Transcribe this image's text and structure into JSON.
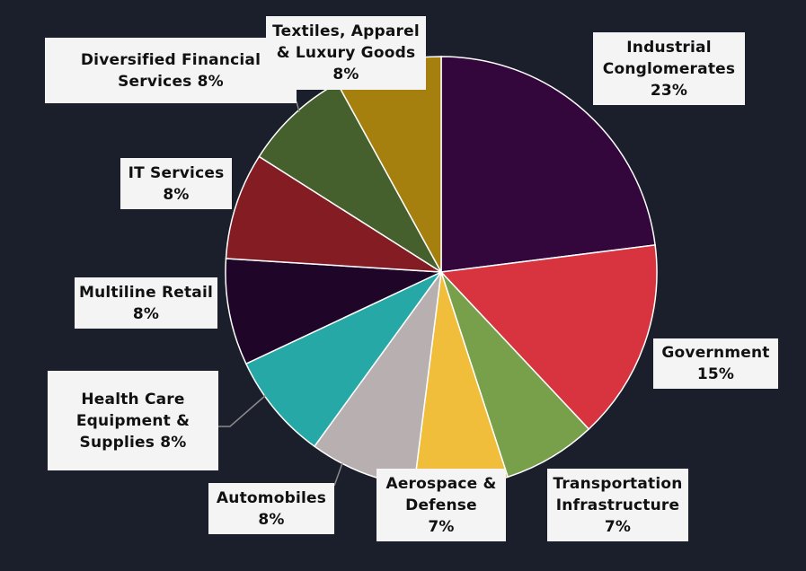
{
  "chart_data": {
    "type": "pie",
    "start_angle": "top, clockwise",
    "slices": [
      {
        "name": "Industrial Conglomerates",
        "value": 23,
        "color": "#33063c",
        "label_lines": [
          "Industrial",
          "Conglomerates",
          "23%"
        ]
      },
      {
        "name": "Government",
        "value": 15,
        "color": "#d7343f",
        "label_lines": [
          "Government",
          "15%"
        ]
      },
      {
        "name": "Transportation Infrastructure",
        "value": 7,
        "color": "#78a04a",
        "label_lines": [
          "Transportation",
          "Infrastructure",
          "7%"
        ]
      },
      {
        "name": "Aerospace & Defense",
        "value": 7,
        "color": "#f0be3a",
        "label_lines": [
          "Aerospace &",
          "Defense",
          "7%"
        ]
      },
      {
        "name": "Automobiles",
        "value": 8,
        "color": "#b8b0b0",
        "label_lines": [
          "Automobiles",
          "8%"
        ]
      },
      {
        "name": "Health Care Equipment & Supplies",
        "value": 8,
        "color": "#26a9a6",
        "label_lines": [
          "Health Care",
          "Equipment &",
          "Supplies 8%"
        ]
      },
      {
        "name": "Multiline Retail",
        "value": 8,
        "color": "#1f0628",
        "label_lines": [
          "Multiline Retail",
          "8%"
        ]
      },
      {
        "name": "IT Services",
        "value": 8,
        "color": "#841c24",
        "label_lines": [
          "IT Services",
          "8%"
        ]
      },
      {
        "name": "Diversified Financial Services",
        "value": 8,
        "color": "#45602c",
        "label_lines": [
          "Diversified Financial",
          "Services 8%"
        ]
      },
      {
        "name": "Textiles, Apparel & Luxury Goods",
        "value": 8,
        "color": "#a6800f",
        "label_lines": [
          "Textiles, Apparel",
          "& Luxury Goods",
          "8%"
        ]
      }
    ],
    "legend": "none (data labels)",
    "background": "#1b1f2b"
  }
}
